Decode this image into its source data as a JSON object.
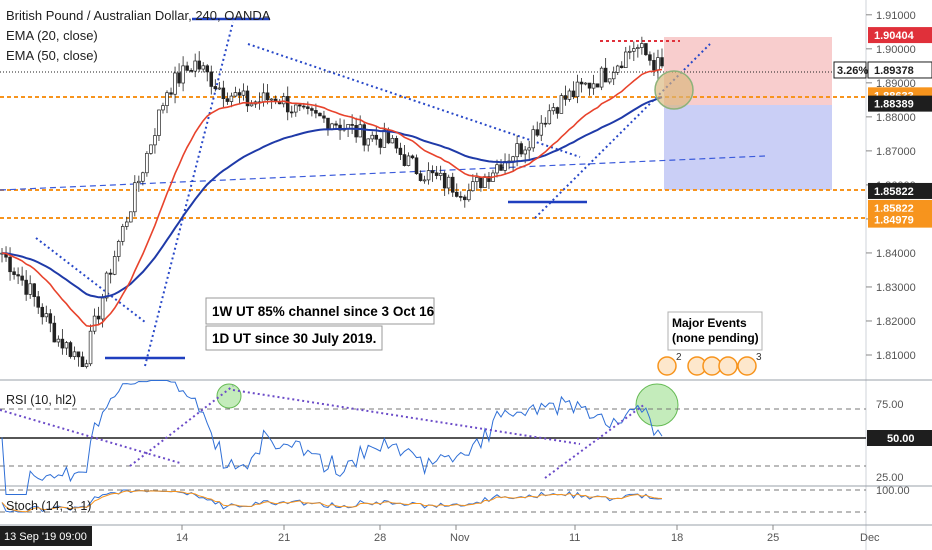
{
  "chart_data": {
    "type": "candlestick",
    "title": "British Pound / Australian Dollar, 240, OANDA",
    "legend": [
      "EMA (20, close)",
      "EMA (50, close)"
    ],
    "x_ticks": [
      "14",
      "21",
      "28",
      "Nov",
      "11",
      "18",
      "25",
      "Dec"
    ],
    "x_start_label": "13 Sep '19  09:00",
    "price_axis": {
      "ticks": [
        "1.91000",
        "1.90000",
        "1.89000",
        "1.88000",
        "1.87000",
        "1.86000",
        "1.85000",
        "1.84000",
        "1.83000",
        "1.82000",
        "1.81000"
      ],
      "ylim": [
        1.805,
        1.912
      ]
    },
    "price_tags": [
      {
        "text": "1.90404",
        "value": 1.90404,
        "color": "#e0303a"
      },
      {
        "text": "1.89378",
        "value": 1.89378,
        "color": "#ffffff",
        "prefix": "3.26%"
      },
      {
        "text": "1.88633",
        "value": 1.88633,
        "color": "#f7941d"
      },
      {
        "text": "1.88389",
        "value": 1.88389,
        "color": "#1e1e1e"
      },
      {
        "text": "1.85822",
        "value": 1.85822,
        "color": "#1e1e1e"
      },
      {
        "text": "1.85822",
        "value": 1.85822,
        "color": "#f7941d"
      },
      {
        "text": "1.84979",
        "value": 1.84979,
        "color": "#f7941d"
      }
    ],
    "approx_closes_by_date": [
      {
        "date": "13 Sep",
        "close": 1.84
      },
      {
        "date": "14 Sep",
        "close": 1.829
      },
      {
        "date": "15 Sep",
        "close": 1.815
      },
      {
        "date": "16 Sep",
        "close": 1.808
      },
      {
        "date": "17 Sep",
        "close": 1.837
      },
      {
        "date": "18 Sep",
        "close": 1.862
      },
      {
        "date": "19 Sep",
        "close": 1.888
      },
      {
        "date": "20 Sep",
        "close": 1.896
      },
      {
        "date": "21 Sep",
        "close": 1.888
      },
      {
        "date": "24 Sep",
        "close": 1.884
      },
      {
        "date": "27 Sep",
        "close": 1.886
      },
      {
        "date": "30 Sep",
        "close": 1.88
      },
      {
        "date": "3 Oct",
        "close": 1.879
      },
      {
        "date": "7 Oct",
        "close": 1.875
      },
      {
        "date": "10 Oct",
        "close": 1.873
      },
      {
        "date": "14 Oct",
        "close": 1.865
      },
      {
        "date": "17 Oct",
        "close": 1.861
      },
      {
        "date": "19 Oct",
        "close": 1.858
      },
      {
        "date": "21 Oct",
        "close": 1.866
      },
      {
        "date": "24 Oct",
        "close": 1.872
      },
      {
        "date": "27 Oct",
        "close": 1.883
      },
      {
        "date": "30 Oct",
        "close": 1.888
      },
      {
        "date": "3 Nov",
        "close": 1.893
      },
      {
        "date": "5 Nov",
        "close": 1.901
      },
      {
        "date": "6 Nov",
        "close": 1.894
      }
    ],
    "annotations": [
      "1W UT 85% channel since 3 Oct 16",
      "1D UT since 30 July 2019."
    ],
    "events": {
      "title": "Major Events",
      "subtitle": "(none pending)",
      "counts": [
        "2",
        "3"
      ]
    },
    "rsi": {
      "label": "RSI (10, hl2)",
      "ticks": [
        "75.00",
        "25.00"
      ],
      "tag": "50.00"
    },
    "stoch": {
      "label": "Stoch (14, 3, 1)",
      "ticks": [
        "100.00"
      ]
    }
  }
}
